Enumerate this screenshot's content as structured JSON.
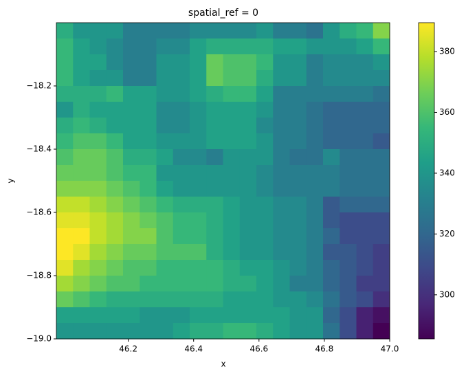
{
  "chart_data": {
    "type": "heatmap",
    "title": "spatial_ref = 0",
    "x_label": "x",
    "y_label": "y",
    "colormap": "viridis",
    "xlim": [
      45.98,
      47.0
    ],
    "ylim": [
      -19.0,
      -18.0
    ],
    "xticks": [
      46.2,
      46.4,
      46.6,
      46.8,
      {
        "value": 47,
        "label": "47.0"
      }
    ],
    "yticks": [
      {
        "value": -18.2,
        "label": "−18.2"
      },
      {
        "value": -18.4,
        "label": "−18.4"
      },
      {
        "value": -18.6,
        "label": "−18.6"
      },
      {
        "value": -18.8,
        "label": "−18.8"
      },
      {
        "value": -19,
        "label": "−19.0"
      }
    ],
    "clim": [
      285.5,
      389.5
    ],
    "cticks": [
      300,
      320,
      340,
      360,
      380
    ],
    "z": [
      [
        350,
        340,
        340,
        340,
        330,
        330,
        330,
        330,
        335,
        335,
        335,
        335,
        340,
        330,
        330,
        325,
        340,
        350,
        355,
        370
      ],
      [
        355,
        345,
        340,
        335,
        330,
        330,
        335,
        335,
        345,
        350,
        350,
        350,
        350,
        345,
        345,
        340,
        340,
        340,
        345,
        355
      ],
      [
        355,
        345,
        345,
        335,
        330,
        330,
        340,
        340,
        345,
        365,
        360,
        360,
        355,
        340,
        340,
        330,
        335,
        335,
        335,
        340
      ],
      [
        355,
        345,
        340,
        340,
        330,
        330,
        340,
        340,
        345,
        365,
        360,
        360,
        350,
        340,
        340,
        330,
        335,
        335,
        335,
        335
      ],
      [
        350,
        350,
        350,
        355,
        345,
        345,
        340,
        340,
        345,
        350,
        355,
        355,
        345,
        330,
        330,
        330,
        330,
        330,
        330,
        325
      ],
      [
        340,
        350,
        345,
        345,
        345,
        345,
        335,
        335,
        340,
        345,
        345,
        345,
        340,
        330,
        330,
        325,
        320,
        320,
        320,
        320
      ],
      [
        350,
        355,
        350,
        345,
        345,
        345,
        335,
        335,
        340,
        345,
        345,
        345,
        335,
        330,
        330,
        325,
        320,
        320,
        320,
        320
      ],
      [
        355,
        360,
        360,
        355,
        345,
        345,
        340,
        340,
        340,
        345,
        345,
        345,
        340,
        330,
        330,
        325,
        320,
        320,
        320,
        315
      ],
      [
        360,
        365,
        365,
        360,
        350,
        350,
        345,
        335,
        335,
        330,
        340,
        340,
        340,
        330,
        325,
        325,
        335,
        325,
        325,
        325
      ],
      [
        365,
        365,
        365,
        360,
        355,
        355,
        340,
        340,
        340,
        340,
        340,
        340,
        335,
        330,
        330,
        330,
        330,
        325,
        325,
        325
      ],
      [
        370,
        370,
        370,
        365,
        360,
        355,
        345,
        340,
        340,
        340,
        340,
        340,
        335,
        330,
        330,
        330,
        330,
        325,
        325,
        325
      ],
      [
        380,
        380,
        375,
        370,
        365,
        360,
        355,
        350,
        350,
        350,
        345,
        340,
        340,
        335,
        335,
        330,
        315,
        320,
        320,
        320
      ],
      [
        385,
        385,
        380,
        375,
        370,
        365,
        360,
        355,
        355,
        350,
        345,
        340,
        340,
        335,
        335,
        330,
        315,
        310,
        310,
        310
      ],
      [
        390,
        390,
        380,
        375,
        370,
        370,
        360,
        355,
        355,
        350,
        345,
        340,
        340,
        335,
        335,
        330,
        320,
        310,
        310,
        310
      ],
      [
        390,
        385,
        375,
        370,
        365,
        365,
        360,
        360,
        360,
        350,
        345,
        340,
        340,
        335,
        335,
        330,
        315,
        315,
        310,
        305
      ],
      [
        385,
        375,
        370,
        365,
        360,
        360,
        355,
        355,
        355,
        355,
        350,
        345,
        345,
        340,
        335,
        330,
        320,
        315,
        310,
        305
      ],
      [
        375,
        370,
        365,
        360,
        360,
        355,
        355,
        355,
        355,
        355,
        350,
        350,
        345,
        340,
        330,
        330,
        320,
        315,
        305,
        305
      ],
      [
        365,
        360,
        355,
        350,
        350,
        350,
        350,
        350,
        350,
        350,
        345,
        345,
        345,
        340,
        340,
        335,
        325,
        315,
        310,
        300
      ],
      [
        345,
        345,
        345,
        345,
        345,
        340,
        340,
        340,
        345,
        345,
        345,
        345,
        345,
        345,
        340,
        340,
        320,
        310,
        295,
        290
      ],
      [
        340,
        340,
        340,
        340,
        340,
        340,
        340,
        345,
        350,
        350,
        355,
        355,
        350,
        345,
        340,
        340,
        325,
        310,
        295,
        285
      ]
    ]
  }
}
